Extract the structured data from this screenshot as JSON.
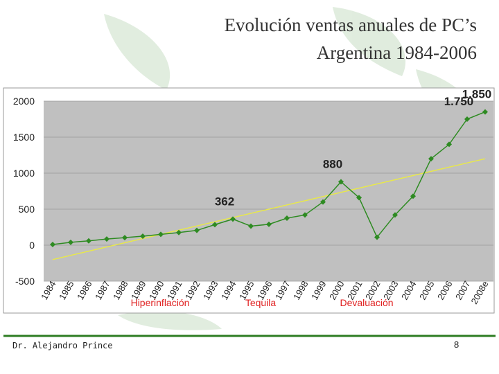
{
  "title": [
    "Evolución ventas anuales de PC’s",
    "Argentina 1984-2006"
  ],
  "footer": {
    "author": "Dr. Alejandro Prince",
    "page": "8"
  },
  "chart_data": {
    "type": "line",
    "categories": [
      "1984",
      "1985",
      "1986",
      "1987",
      "1988",
      "1989",
      "1990",
      "1991",
      "1992",
      "1993",
      "1994",
      "1995",
      "1996",
      "1997",
      "1998",
      "1999",
      "2000",
      "2001",
      "2002",
      "2003",
      "2004",
      "2005",
      "2006",
      "2007",
      "2008e"
    ],
    "series": [
      {
        "color": "#2e8b22",
        "values": [
          10,
          40,
          60,
          85,
          105,
          125,
          150,
          175,
          205,
          285,
          362,
          265,
          290,
          375,
          420,
          600,
          880,
          660,
          110,
          420,
          680,
          1200,
          1400,
          1750,
          1850
        ],
        "value_labels": [
          null,
          null,
          null,
          null,
          null,
          null,
          null,
          null,
          null,
          null,
          "362",
          null,
          null,
          null,
          null,
          null,
          "880",
          null,
          null,
          null,
          null,
          null,
          null,
          "1.750",
          "1.850"
        ]
      }
    ],
    "trendline": {
      "color": "#e8e84a",
      "values": [
        -200,
        1200
      ]
    },
    "ylim": [
      -500,
      2000
    ],
    "yticks": [
      -500,
      0,
      500,
      1000,
      1500,
      2000
    ],
    "grid": true,
    "annotations": [
      "Hiperinflación",
      "Tequila",
      "Devaluación"
    ],
    "annotation_color": "#e02020"
  }
}
